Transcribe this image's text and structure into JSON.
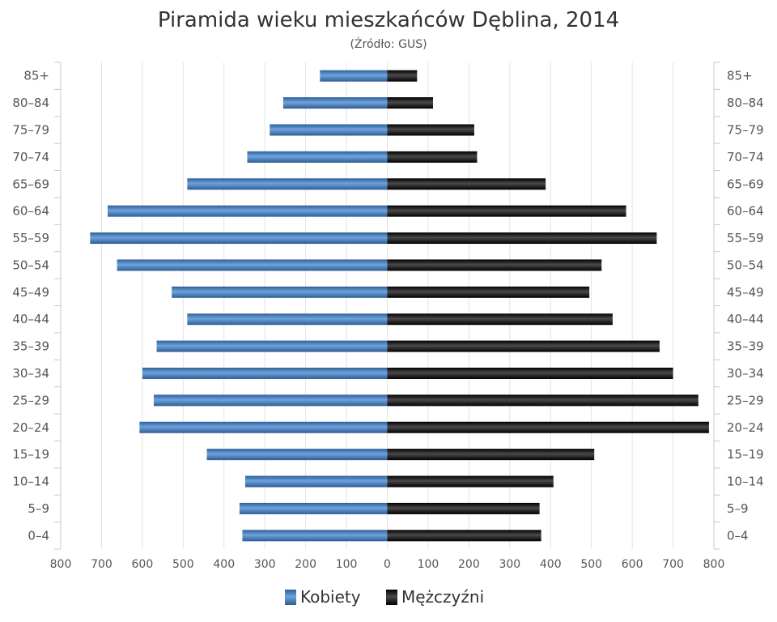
{
  "chart_data": {
    "type": "bar",
    "orientation": "horizontal",
    "title": "Piramida wieku mieszkańców Dęblina, 2014",
    "subtitle": "(Źródło: GUS)",
    "categories": [
      "85+",
      "80-84",
      "75-79",
      "70-74",
      "65-69",
      "60-64",
      "55-59",
      "50-54",
      "45-49",
      "40-44",
      "35-39",
      "30-34",
      "25-29",
      "20-24",
      "15-19",
      "10-14",
      "5-9",
      "0-4"
    ],
    "xlim": [
      -800,
      800
    ],
    "xticks": [
      "800",
      "700",
      "600",
      "500",
      "400",
      "300",
      "200",
      "100",
      "0",
      "100",
      "200",
      "300",
      "400",
      "500",
      "600",
      "700",
      "800"
    ],
    "grid": true,
    "legend_position": "bottom",
    "series": [
      {
        "name": "Kobiety",
        "color": "#4a86c5",
        "side": "left",
        "values": [
          165,
          255,
          288,
          343,
          490,
          685,
          728,
          662,
          528,
          490,
          565,
          600,
          572,
          607,
          442,
          348,
          362,
          355
        ]
      },
      {
        "name": "Mężczyźni",
        "color": "#1a1a1a",
        "side": "right",
        "values": [
          73,
          112,
          213,
          220,
          388,
          585,
          660,
          525,
          495,
          552,
          667,
          700,
          762,
          788,
          507,
          407,
          373,
          377
        ]
      }
    ]
  }
}
